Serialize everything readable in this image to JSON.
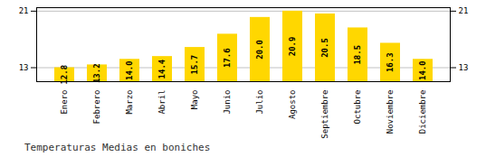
{
  "chart_data": {
    "type": "bar",
    "title": "Temperaturas Medias en boniches",
    "categories": [
      "Enero",
      "Febrero",
      "Marzo",
      "Abril",
      "Mayo",
      "Junio",
      "Julio",
      "Agosto",
      "Septiembre",
      "Octubre",
      "Noviembre",
      "Diciembre"
    ],
    "values": [
      12.8,
      13.2,
      14.0,
      14.4,
      15.7,
      17.6,
      20.0,
      20.9,
      20.5,
      18.5,
      16.3,
      14.0
    ],
    "value_labels": [
      "12.8",
      "13.2",
      "14.0",
      "14.4",
      "15.7",
      "17.6",
      "20.0",
      "20.9",
      "20.5",
      "18.5",
      "16.3",
      "14.0"
    ],
    "color": "#FFD700",
    "ylim": [
      10.8,
      21.4
    ],
    "yticks": [
      12.8,
      20.9
    ],
    "grid": true,
    "data_labels": true
  }
}
